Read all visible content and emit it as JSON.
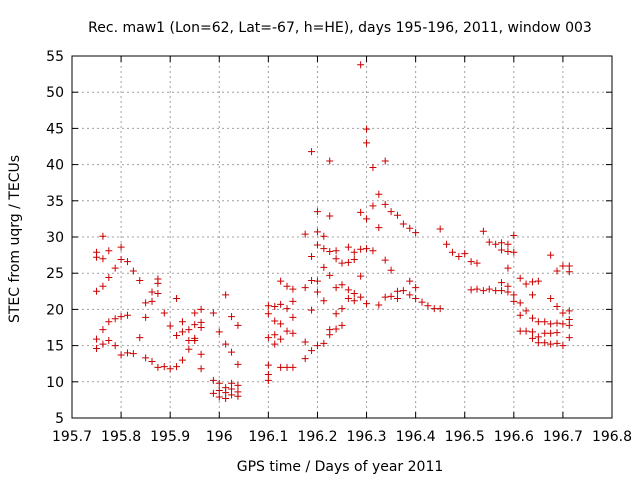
{
  "chart_data": {
    "type": "scatter",
    "title": "Rec. maw1 (Lon=62, Lat=-67, h=HE), days 195-196, 2011, window 003",
    "xlabel": "GPS time / Days of year 2011",
    "ylabel": "STEC from uqrg / TECUs",
    "xlim": [
      195.7,
      196.8
    ],
    "ylim": [
      5,
      55
    ],
    "xticks": [
      195.7,
      195.8,
      195.9,
      196,
      196.1,
      196.2,
      196.3,
      196.4,
      196.5,
      196.6,
      196.7,
      196.8
    ],
    "xtick_labels": [
      "195.7",
      "195.8",
      "195.9",
      "196",
      "196.1",
      "196.2",
      "196.3",
      "196.4",
      "196.5",
      "196.6",
      "196.7",
      "196.8"
    ],
    "yticks": [
      5,
      10,
      15,
      20,
      25,
      30,
      35,
      40,
      45,
      50,
      55
    ],
    "ytick_labels": [
      "5",
      "10",
      "15",
      "20",
      "25",
      "30",
      "35",
      "40",
      "45",
      "50",
      "55"
    ],
    "grid": true,
    "marker": "plus",
    "marker_color": "#cc0000",
    "points": [
      [
        195.75,
        27.9
      ],
      [
        195.75,
        27.2
      ],
      [
        195.75,
        22.5
      ],
      [
        195.75,
        15.9
      ],
      [
        195.75,
        14.6
      ],
      [
        195.763,
        30.1
      ],
      [
        195.763,
        27.0
      ],
      [
        195.763,
        23.2
      ],
      [
        195.763,
        17.2
      ],
      [
        195.763,
        15.2
      ],
      [
        195.775,
        28.1
      ],
      [
        195.775,
        24.4
      ],
      [
        195.775,
        18.3
      ],
      [
        195.775,
        15.7
      ],
      [
        195.788,
        25.7
      ],
      [
        195.788,
        18.7
      ],
      [
        195.788,
        15.0
      ],
      [
        195.8,
        28.6
      ],
      [
        195.8,
        26.9
      ],
      [
        195.8,
        19.0
      ],
      [
        195.8,
        13.7
      ],
      [
        195.813,
        26.6
      ],
      [
        195.813,
        19.2
      ],
      [
        195.813,
        14.0
      ],
      [
        195.825,
        25.3
      ],
      [
        195.825,
        13.9
      ],
      [
        195.838,
        24.0
      ],
      [
        195.838,
        16.1
      ],
      [
        195.85,
        20.9
      ],
      [
        195.85,
        18.9
      ],
      [
        195.85,
        13.3
      ],
      [
        195.863,
        22.4
      ],
      [
        195.863,
        21.1
      ],
      [
        195.863,
        12.8
      ],
      [
        195.875,
        24.2
      ],
      [
        195.875,
        23.6
      ],
      [
        195.875,
        22.2
      ],
      [
        195.875,
        12.0
      ],
      [
        195.888,
        19.5
      ],
      [
        195.888,
        12.1
      ],
      [
        195.9,
        17.7
      ],
      [
        195.9,
        11.8
      ],
      [
        195.913,
        21.5
      ],
      [
        195.913,
        16.4
      ],
      [
        195.913,
        12.1
      ],
      [
        195.925,
        18.3
      ],
      [
        195.925,
        16.9
      ],
      [
        195.925,
        13.0
      ],
      [
        195.938,
        17.2
      ],
      [
        195.938,
        15.7
      ],
      [
        195.938,
        14.5
      ],
      [
        195.95,
        19.5
      ],
      [
        195.95,
        17.9
      ],
      [
        195.95,
        16.0
      ],
      [
        195.95,
        15.7
      ],
      [
        195.963,
        20.0
      ],
      [
        195.963,
        18.2
      ],
      [
        195.963,
        17.5
      ],
      [
        195.963,
        13.8
      ],
      [
        195.963,
        11.8
      ],
      [
        195.988,
        19.5
      ],
      [
        195.988,
        10.2
      ],
      [
        195.988,
        8.4
      ],
      [
        196.0,
        16.9
      ],
      [
        196.0,
        9.8
      ],
      [
        196.0,
        8.8
      ],
      [
        196.0,
        7.9
      ],
      [
        196.013,
        22.0
      ],
      [
        196.013,
        15.2
      ],
      [
        196.013,
        9.2
      ],
      [
        196.013,
        8.5
      ],
      [
        196.013,
        7.7
      ],
      [
        196.025,
        19.0
      ],
      [
        196.025,
        14.1
      ],
      [
        196.025,
        9.8
      ],
      [
        196.025,
        9.0
      ],
      [
        196.025,
        8.2
      ],
      [
        196.038,
        17.8
      ],
      [
        196.038,
        12.4
      ],
      [
        196.038,
        9.5
      ],
      [
        196.038,
        8.6
      ],
      [
        196.038,
        8.0
      ],
      [
        196.1,
        20.5
      ],
      [
        196.1,
        19.4
      ],
      [
        196.1,
        16.1
      ],
      [
        196.1,
        12.3
      ],
      [
        196.1,
        11.0
      ],
      [
        196.1,
        10.2
      ],
      [
        196.113,
        20.4
      ],
      [
        196.113,
        18.4
      ],
      [
        196.113,
        16.5
      ],
      [
        196.113,
        15.2
      ],
      [
        196.125,
        23.9
      ],
      [
        196.125,
        20.7
      ],
      [
        196.125,
        18.0
      ],
      [
        196.125,
        15.9
      ],
      [
        196.125,
        12.0
      ],
      [
        196.138,
        23.2
      ],
      [
        196.138,
        20.1
      ],
      [
        196.138,
        17.0
      ],
      [
        196.138,
        12.0
      ],
      [
        196.15,
        22.8
      ],
      [
        196.15,
        21.1
      ],
      [
        196.15,
        18.9
      ],
      [
        196.15,
        16.7
      ],
      [
        196.15,
        12.0
      ],
      [
        196.175,
        30.4
      ],
      [
        196.175,
        23.0
      ],
      [
        196.175,
        15.5
      ],
      [
        196.175,
        13.2
      ],
      [
        196.188,
        41.8
      ],
      [
        196.188,
        27.3
      ],
      [
        196.188,
        24.0
      ],
      [
        196.188,
        19.9
      ],
      [
        196.188,
        14.3
      ],
      [
        196.2,
        33.5
      ],
      [
        196.2,
        30.7
      ],
      [
        196.2,
        28.9
      ],
      [
        196.2,
        23.9
      ],
      [
        196.2,
        22.4
      ],
      [
        196.2,
        15.0
      ],
      [
        196.213,
        30.1
      ],
      [
        196.213,
        28.4
      ],
      [
        196.213,
        25.8
      ],
      [
        196.213,
        21.2
      ],
      [
        196.213,
        15.3
      ],
      [
        196.225,
        40.5
      ],
      [
        196.225,
        32.9
      ],
      [
        196.225,
        28.0
      ],
      [
        196.225,
        24.7
      ],
      [
        196.225,
        17.2
      ],
      [
        196.225,
        16.5
      ],
      [
        196.238,
        28.1
      ],
      [
        196.238,
        27.0
      ],
      [
        196.238,
        23.0
      ],
      [
        196.238,
        19.4
      ],
      [
        196.238,
        17.3
      ],
      [
        196.25,
        26.4
      ],
      [
        196.25,
        23.4
      ],
      [
        196.25,
        20.1
      ],
      [
        196.25,
        17.8
      ],
      [
        196.263,
        28.6
      ],
      [
        196.263,
        26.5
      ],
      [
        196.263,
        22.7
      ],
      [
        196.263,
        21.5
      ],
      [
        196.275,
        27.9
      ],
      [
        196.275,
        26.9
      ],
      [
        196.275,
        22.2
      ],
      [
        196.275,
        21.2
      ],
      [
        196.288,
        53.8
      ],
      [
        196.288,
        33.4
      ],
      [
        196.288,
        28.3
      ],
      [
        196.288,
        24.6
      ],
      [
        196.288,
        21.7
      ],
      [
        196.3,
        44.9
      ],
      [
        196.3,
        43.0
      ],
      [
        196.3,
        32.5
      ],
      [
        196.3,
        28.4
      ],
      [
        196.3,
        20.8
      ],
      [
        196.313,
        39.6
      ],
      [
        196.313,
        34.3
      ],
      [
        196.313,
        28.1
      ],
      [
        196.325,
        35.9
      ],
      [
        196.325,
        31.3
      ],
      [
        196.325,
        20.6
      ],
      [
        196.338,
        40.5
      ],
      [
        196.338,
        34.5
      ],
      [
        196.338,
        26.8
      ],
      [
        196.338,
        21.7
      ],
      [
        196.35,
        33.5
      ],
      [
        196.35,
        25.4
      ],
      [
        196.35,
        21.8
      ],
      [
        196.363,
        33.0
      ],
      [
        196.363,
        22.5
      ],
      [
        196.363,
        21.5
      ],
      [
        196.375,
        31.8
      ],
      [
        196.375,
        22.6
      ],
      [
        196.388,
        31.2
      ],
      [
        196.388,
        23.9
      ],
      [
        196.388,
        22.0
      ],
      [
        196.4,
        30.6
      ],
      [
        196.4,
        23.0
      ],
      [
        196.4,
        21.5
      ],
      [
        196.413,
        21.0
      ],
      [
        196.425,
        20.5
      ],
      [
        196.438,
        20.1
      ],
      [
        196.45,
        31.1
      ],
      [
        196.45,
        20.1
      ],
      [
        196.463,
        29.0
      ],
      [
        196.475,
        27.9
      ],
      [
        196.488,
        27.3
      ],
      [
        196.5,
        27.7
      ],
      [
        196.513,
        26.6
      ],
      [
        196.525,
        26.4
      ],
      [
        196.513,
        22.7
      ],
      [
        196.525,
        22.8
      ],
      [
        196.538,
        30.8
      ],
      [
        196.538,
        22.6
      ],
      [
        196.55,
        29.3
      ],
      [
        196.55,
        22.8
      ],
      [
        196.563,
        29.0
      ],
      [
        196.563,
        22.6
      ],
      [
        196.575,
        29.2
      ],
      [
        196.575,
        28.2
      ],
      [
        196.575,
        23.7
      ],
      [
        196.575,
        22.6
      ],
      [
        196.588,
        29.0
      ],
      [
        196.588,
        28.0
      ],
      [
        196.588,
        25.7
      ],
      [
        196.588,
        23.2
      ],
      [
        196.588,
        22.4
      ],
      [
        196.6,
        30.2
      ],
      [
        196.6,
        27.9
      ],
      [
        196.6,
        22.0
      ],
      [
        196.6,
        21.1
      ],
      [
        196.613,
        24.3
      ],
      [
        196.613,
        20.9
      ],
      [
        196.613,
        19.2
      ],
      [
        196.613,
        17.0
      ],
      [
        196.625,
        23.5
      ],
      [
        196.625,
        19.8
      ],
      [
        196.625,
        17.0
      ],
      [
        196.638,
        23.8
      ],
      [
        196.638,
        22.0
      ],
      [
        196.638,
        18.8
      ],
      [
        196.638,
        16.9
      ],
      [
        196.638,
        16.0
      ],
      [
        196.65,
        23.9
      ],
      [
        196.65,
        18.3
      ],
      [
        196.65,
        16.2
      ],
      [
        196.65,
        15.4
      ],
      [
        196.663,
        18.3
      ],
      [
        196.663,
        16.7
      ],
      [
        196.663,
        15.4
      ],
      [
        196.675,
        27.5
      ],
      [
        196.675,
        21.5
      ],
      [
        196.675,
        18.0
      ],
      [
        196.675,
        16.7
      ],
      [
        196.675,
        15.2
      ],
      [
        196.688,
        25.3
      ],
      [
        196.688,
        20.4
      ],
      [
        196.688,
        18.1
      ],
      [
        196.688,
        16.8
      ],
      [
        196.688,
        15.3
      ],
      [
        196.7,
        26.0
      ],
      [
        196.7,
        19.5
      ],
      [
        196.7,
        18.0
      ],
      [
        196.7,
        15.0
      ],
      [
        196.713,
        26.0
      ],
      [
        196.713,
        25.2
      ],
      [
        196.713,
        19.8
      ],
      [
        196.713,
        18.6
      ],
      [
        196.713,
        17.8
      ],
      [
        196.713,
        16.1
      ]
    ]
  }
}
